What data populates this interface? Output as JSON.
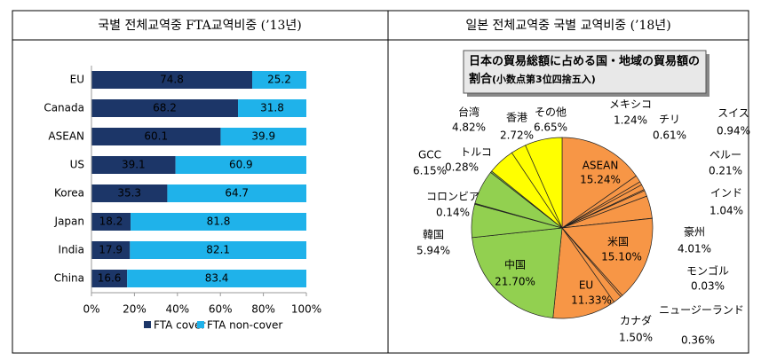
{
  "chart_data": [
    {
      "type": "bar",
      "orientation": "horizontal",
      "stacked": true,
      "title": "국별 전체교역중 FTA교역비중 (’13년)",
      "categories": [
        "EU",
        "Canada",
        "ASEAN",
        "US",
        "Korea",
        "Japan",
        "India",
        "China"
      ],
      "series": [
        {
          "name": "FTA cover",
          "color": "#1c3668",
          "values": [
            74.8,
            68.2,
            60.1,
            39.1,
            35.3,
            18.2,
            17.9,
            16.6
          ]
        },
        {
          "name": "FTA non-cover",
          "color": "#1fb2ea",
          "values": [
            25.2,
            31.8,
            39.9,
            60.9,
            64.7,
            81.8,
            82.1,
            83.4
          ]
        }
      ],
      "xlim": [
        0,
        100
      ],
      "xticks": [
        {
          "value": 0,
          "label": "0%"
        },
        {
          "value": 20,
          "label": "20%"
        },
        {
          "value": 40,
          "label": "40%"
        },
        {
          "value": 60,
          "label": "60%"
        },
        {
          "value": 80,
          "label": "80%"
        },
        {
          "value": 100,
          "label": "100%"
        }
      ],
      "legend": "bottom"
    },
    {
      "type": "pie",
      "heading": "일본 전체교역중 국별 교역비중 (’18년)",
      "title": "日本の貿易総額に占める国・地域の貿易額の割合",
      "subtitle": "(小数点第3位四捨五入)",
      "categories": [
        "ASEAN",
        "メキシコ",
        "チリ",
        "スイス",
        "ペルー",
        "インド",
        "豪州",
        "モンゴル",
        "米国",
        "ニュージーランド",
        "カナダ",
        "EU",
        "中国",
        "韓国",
        "コロンビア",
        "GCC",
        "トルコ",
        "台湾",
        "香港",
        "その他"
      ],
      "values": [
        15.24,
        1.24,
        0.61,
        0.94,
        0.21,
        1.04,
        4.01,
        0.03,
        15.1,
        0.36,
        1.5,
        11.33,
        21.7,
        5.94,
        0.14,
        6.15,
        0.28,
        4.82,
        2.72,
        6.65
      ],
      "value_labels": [
        "15.24%",
        "1.24%",
        "0.61%",
        "0.94%",
        "0.21%",
        "1.04%",
        "4.01%",
        "0.03%",
        "15.10%",
        "0.36%",
        "1.50%",
        "11.33%",
        "21.70%",
        "5.94%",
        "0.14%",
        "6.15%",
        "0.28%",
        "4.82%",
        "2.72%",
        "6.65%"
      ],
      "colors": [
        "#f79646",
        "#f79646",
        "#f79646",
        "#f79646",
        "#f79646",
        "#f79646",
        "#f79646",
        "#f79646",
        "#f79646",
        "#f79646",
        "#f79646",
        "#f79646",
        "#92d050",
        "#92d050",
        "#92d050",
        "#92d050",
        "#92d050",
        "#ffff00",
        "#ffff00",
        "#ffff00"
      ]
    }
  ]
}
